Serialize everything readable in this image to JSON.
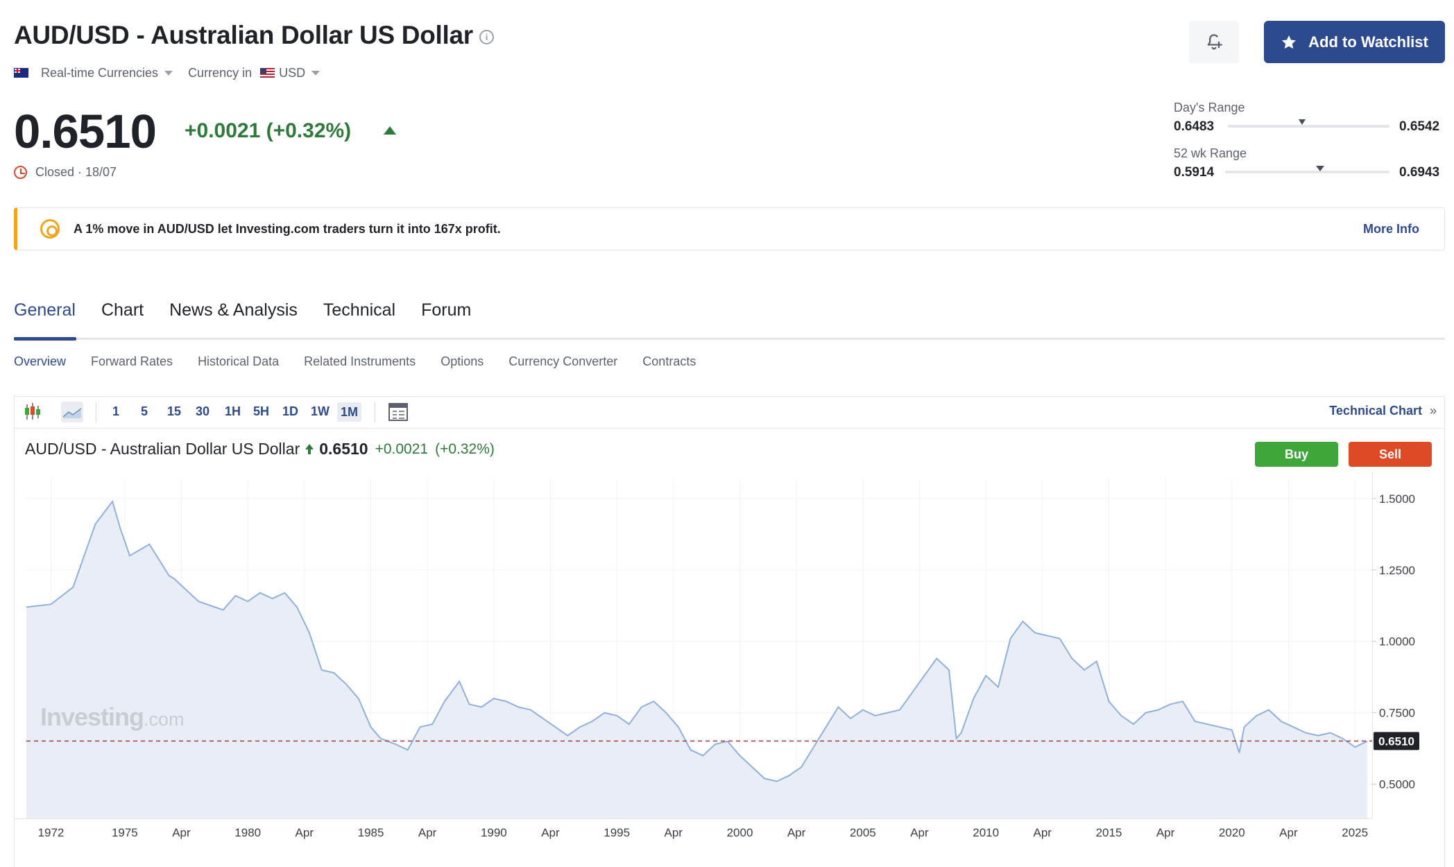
{
  "header": {
    "title": "AUD/USD - Australian Dollar US Dollar",
    "category": "Real-time Currencies",
    "currency_label": "Currency in",
    "currency": "USD",
    "watchlist_label": "Add to Watchlist"
  },
  "quote": {
    "price": "0.6510",
    "change": "+0.0021 (+0.32%)",
    "status": "Closed · 18/07"
  },
  "ranges": {
    "day": {
      "label": "Day's Range",
      "low": "0.6483",
      "high": "0.6542",
      "position": 0.46
    },
    "week52": {
      "label": "52 wk Range",
      "low": "0.5914",
      "high": "0.6943",
      "position": 0.58
    }
  },
  "banner": {
    "text": "A 1% move in AUD/USD let Investing.com traders turn it into 167x profit.",
    "more": "More Info"
  },
  "tabs": [
    "General",
    "Chart",
    "News & Analysis",
    "Technical",
    "Forum"
  ],
  "subtabs": [
    "Overview",
    "Forward Rates",
    "Historical Data",
    "Related Instruments",
    "Options",
    "Currency Converter",
    "Contracts"
  ],
  "toolbar": {
    "timeframes": [
      "1",
      "5",
      "15",
      "30",
      "1H",
      "5H",
      "1D",
      "1W",
      "1M"
    ],
    "active_timeframe": "1M",
    "technical_chart": "Technical Chart"
  },
  "chart_header": {
    "name": "AUD/USD - Australian Dollar US Dollar",
    "price": "0.6510",
    "change": "+0.0021",
    "percent": "(+0.32%)",
    "buy": "Buy",
    "sell": "Sell"
  },
  "watermark": {
    "brand": "Investing",
    "suffix": ".com"
  },
  "colors": {
    "accent": "#2e4a8f",
    "up": "#2f7a39",
    "buy": "#3fa63a",
    "sell": "#dc4a26",
    "line": "#8fb0dc",
    "fill": "#e9eef6",
    "ref_line": "#a23a3a"
  },
  "chart_data": {
    "type": "area",
    "title": "AUD/USD - Australian Dollar US Dollar",
    "x_unit": "year",
    "x": [
      1971.0,
      1972.0,
      1972.9,
      1973.8,
      1974.5,
      1974.8,
      1975.2,
      1976.0,
      1976.8,
      1977.0,
      1978.0,
      1979.0,
      1979.5,
      1980.0,
      1980.5,
      1981.0,
      1981.5,
      1982.0,
      1982.5,
      1983.0,
      1983.5,
      1984.0,
      1984.5,
      1985.0,
      1985.4,
      1986.0,
      1986.5,
      1987.0,
      1987.5,
      1988.0,
      1988.6,
      1989.0,
      1989.5,
      1990.0,
      1990.5,
      1991.0,
      1991.5,
      1992.0,
      1992.5,
      1993.0,
      1993.5,
      1994.0,
      1994.5,
      1995.0,
      1995.5,
      1996.0,
      1996.5,
      1997.0,
      1997.5,
      1998.0,
      1998.5,
      1999.0,
      1999.5,
      2000.0,
      2000.5,
      2001.0,
      2001.5,
      2002.0,
      2002.5,
      2003.0,
      2003.5,
      2004.0,
      2004.5,
      2005.0,
      2005.5,
      2006.0,
      2006.5,
      2007.0,
      2007.5,
      2008.0,
      2008.5,
      2008.8,
      2009.0,
      2009.5,
      2010.0,
      2010.5,
      2011.0,
      2011.5,
      2012.0,
      2012.5,
      2013.0,
      2013.5,
      2014.0,
      2014.5,
      2015.0,
      2015.5,
      2016.0,
      2016.5,
      2017.0,
      2017.5,
      2018.0,
      2018.5,
      2019.0,
      2019.5,
      2020.0,
      2020.3,
      2020.5,
      2021.0,
      2021.5,
      2022.0,
      2022.5,
      2023.0,
      2023.5,
      2024.0,
      2024.5,
      2025.0,
      2025.5
    ],
    "series": [
      {
        "values": [
          1.12,
          1.13,
          1.19,
          1.41,
          1.49,
          1.4,
          1.3,
          1.34,
          1.23,
          1.22,
          1.14,
          1.11,
          1.16,
          1.14,
          1.17,
          1.15,
          1.17,
          1.12,
          1.03,
          0.9,
          0.89,
          0.85,
          0.8,
          0.7,
          0.66,
          0.64,
          0.62,
          0.7,
          0.71,
          0.79,
          0.86,
          0.78,
          0.77,
          0.8,
          0.79,
          0.77,
          0.76,
          0.73,
          0.7,
          0.67,
          0.7,
          0.72,
          0.75,
          0.74,
          0.71,
          0.77,
          0.79,
          0.75,
          0.7,
          0.62,
          0.6,
          0.64,
          0.65,
          0.6,
          0.56,
          0.52,
          0.51,
          0.53,
          0.56,
          0.63,
          0.7,
          0.77,
          0.73,
          0.76,
          0.74,
          0.75,
          0.76,
          0.82,
          0.88,
          0.94,
          0.9,
          0.66,
          0.68,
          0.8,
          0.88,
          0.84,
          1.01,
          1.07,
          1.03,
          1.02,
          1.01,
          0.94,
          0.9,
          0.93,
          0.79,
          0.74,
          0.71,
          0.75,
          0.76,
          0.78,
          0.79,
          0.72,
          0.71,
          0.7,
          0.69,
          0.61,
          0.7,
          0.74,
          0.76,
          0.72,
          0.7,
          0.68,
          0.67,
          0.68,
          0.66,
          0.63,
          0.65
        ]
      }
    ],
    "xlim": [
      1971.0,
      2025.7
    ],
    "ylim": [
      0.38,
      1.57
    ],
    "y_ticks": [
      1.5,
      1.25,
      1.0,
      0.75,
      0.5
    ],
    "y_tick_labels": [
      "1.5000",
      "1.2500",
      "1.0000",
      "0.7500",
      "0.5000"
    ],
    "x_tick_labels": [
      {
        "x": 1972,
        "label": "1972"
      },
      {
        "x": 1975,
        "label": "1975"
      },
      {
        "x": 1977.3,
        "label": "Apr"
      },
      {
        "x": 1980,
        "label": "1980"
      },
      {
        "x": 1982.3,
        "label": "Apr"
      },
      {
        "x": 1985,
        "label": "1985"
      },
      {
        "x": 1987.3,
        "label": "Apr"
      },
      {
        "x": 1990,
        "label": "1990"
      },
      {
        "x": 1992.3,
        "label": "Apr"
      },
      {
        "x": 1995,
        "label": "1995"
      },
      {
        "x": 1997.3,
        "label": "Apr"
      },
      {
        "x": 2000,
        "label": "2000"
      },
      {
        "x": 2002.3,
        "label": "Apr"
      },
      {
        "x": 2005,
        "label": "2005"
      },
      {
        "x": 2007.3,
        "label": "Apr"
      },
      {
        "x": 2010,
        "label": "2010"
      },
      {
        "x": 2012.3,
        "label": "Apr"
      },
      {
        "x": 2015,
        "label": "2015"
      },
      {
        "x": 2017.3,
        "label": "Apr"
      },
      {
        "x": 2020,
        "label": "2020"
      },
      {
        "x": 2022.3,
        "label": "Apr"
      },
      {
        "x": 2025,
        "label": "2025"
      }
    ],
    "last_price": 0.651,
    "last_price_label": "0.6510",
    "grid": true
  }
}
